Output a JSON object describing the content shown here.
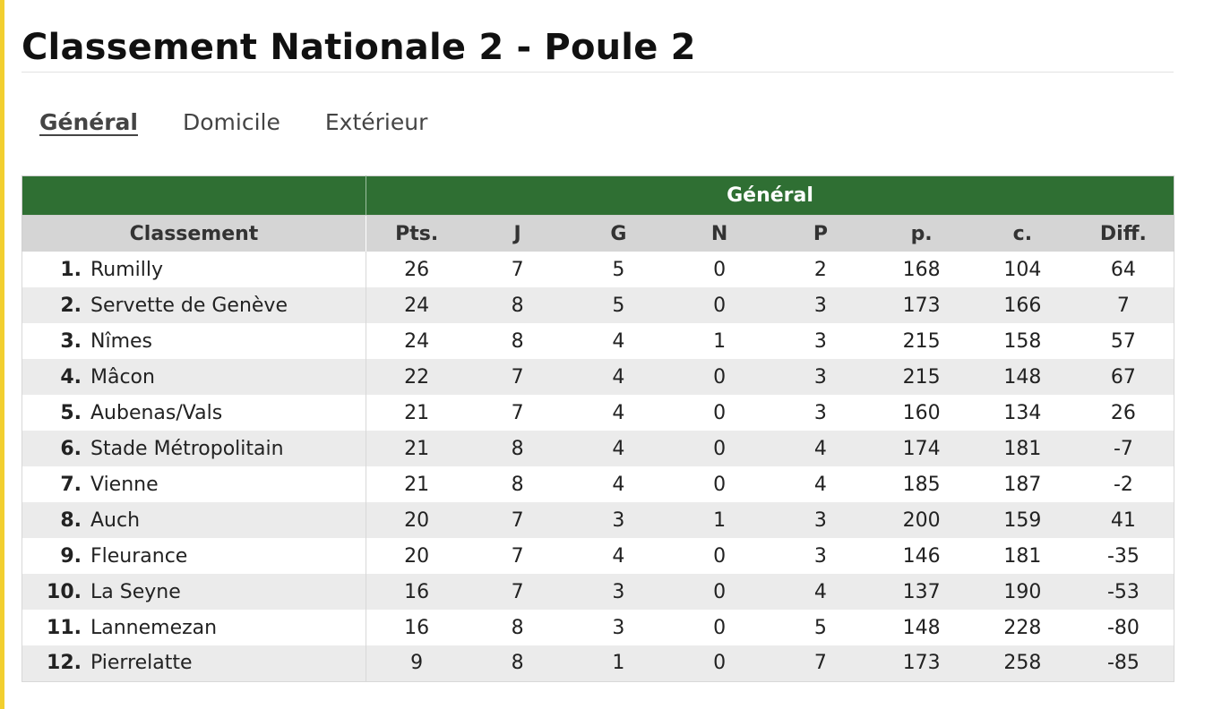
{
  "title": "Classement Nationale 2 - Poule 2",
  "tabs": [
    {
      "label": "Général",
      "active": true
    },
    {
      "label": "Domicile",
      "active": false
    },
    {
      "label": "Extérieur",
      "active": false
    }
  ],
  "colors": {
    "header_green": "#2f6f33",
    "column_header_gray": "#d5d5d5",
    "accent_yellow": "#f2cf2f"
  },
  "table": {
    "group_header": "Général",
    "columns": [
      "Classement",
      "Pts.",
      "J",
      "G",
      "N",
      "P",
      "p.",
      "c.",
      "Diff."
    ],
    "rows": [
      {
        "rank": "1.",
        "team": "Rumilly",
        "pts": "26",
        "j": "7",
        "g": "5",
        "n": "0",
        "p": "2",
        "pf": "168",
        "pc": "104",
        "diff": "64"
      },
      {
        "rank": "2.",
        "team": "Servette de Genève",
        "pts": "24",
        "j": "8",
        "g": "5",
        "n": "0",
        "p": "3",
        "pf": "173",
        "pc": "166",
        "diff": "7"
      },
      {
        "rank": "3.",
        "team": "Nîmes",
        "pts": "24",
        "j": "8",
        "g": "4",
        "n": "1",
        "p": "3",
        "pf": "215",
        "pc": "158",
        "diff": "57"
      },
      {
        "rank": "4.",
        "team": "Mâcon",
        "pts": "22",
        "j": "7",
        "g": "4",
        "n": "0",
        "p": "3",
        "pf": "215",
        "pc": "148",
        "diff": "67"
      },
      {
        "rank": "5.",
        "team": "Aubenas/Vals",
        "pts": "21",
        "j": "7",
        "g": "4",
        "n": "0",
        "p": "3",
        "pf": "160",
        "pc": "134",
        "diff": "26"
      },
      {
        "rank": "6.",
        "team": "Stade Métropolitain",
        "pts": "21",
        "j": "8",
        "g": "4",
        "n": "0",
        "p": "4",
        "pf": "174",
        "pc": "181",
        "diff": "-7"
      },
      {
        "rank": "7.",
        "team": "Vienne",
        "pts": "21",
        "j": "8",
        "g": "4",
        "n": "0",
        "p": "4",
        "pf": "185",
        "pc": "187",
        "diff": "-2"
      },
      {
        "rank": "8.",
        "team": "Auch",
        "pts": "20",
        "j": "7",
        "g": "3",
        "n": "1",
        "p": "3",
        "pf": "200",
        "pc": "159",
        "diff": "41"
      },
      {
        "rank": "9.",
        "team": "Fleurance",
        "pts": "20",
        "j": "7",
        "g": "4",
        "n": "0",
        "p": "3",
        "pf": "146",
        "pc": "181",
        "diff": "-35"
      },
      {
        "rank": "10.",
        "team": "La Seyne",
        "pts": "16",
        "j": "7",
        "g": "3",
        "n": "0",
        "p": "4",
        "pf": "137",
        "pc": "190",
        "diff": "-53"
      },
      {
        "rank": "11.",
        "team": "Lannemezan",
        "pts": "16",
        "j": "8",
        "g": "3",
        "n": "0",
        "p": "5",
        "pf": "148",
        "pc": "228",
        "diff": "-80"
      },
      {
        "rank": "12.",
        "team": "Pierrelatte",
        "pts": "9",
        "j": "8",
        "g": "1",
        "n": "0",
        "p": "7",
        "pf": "173",
        "pc": "258",
        "diff": "-85"
      }
    ]
  }
}
